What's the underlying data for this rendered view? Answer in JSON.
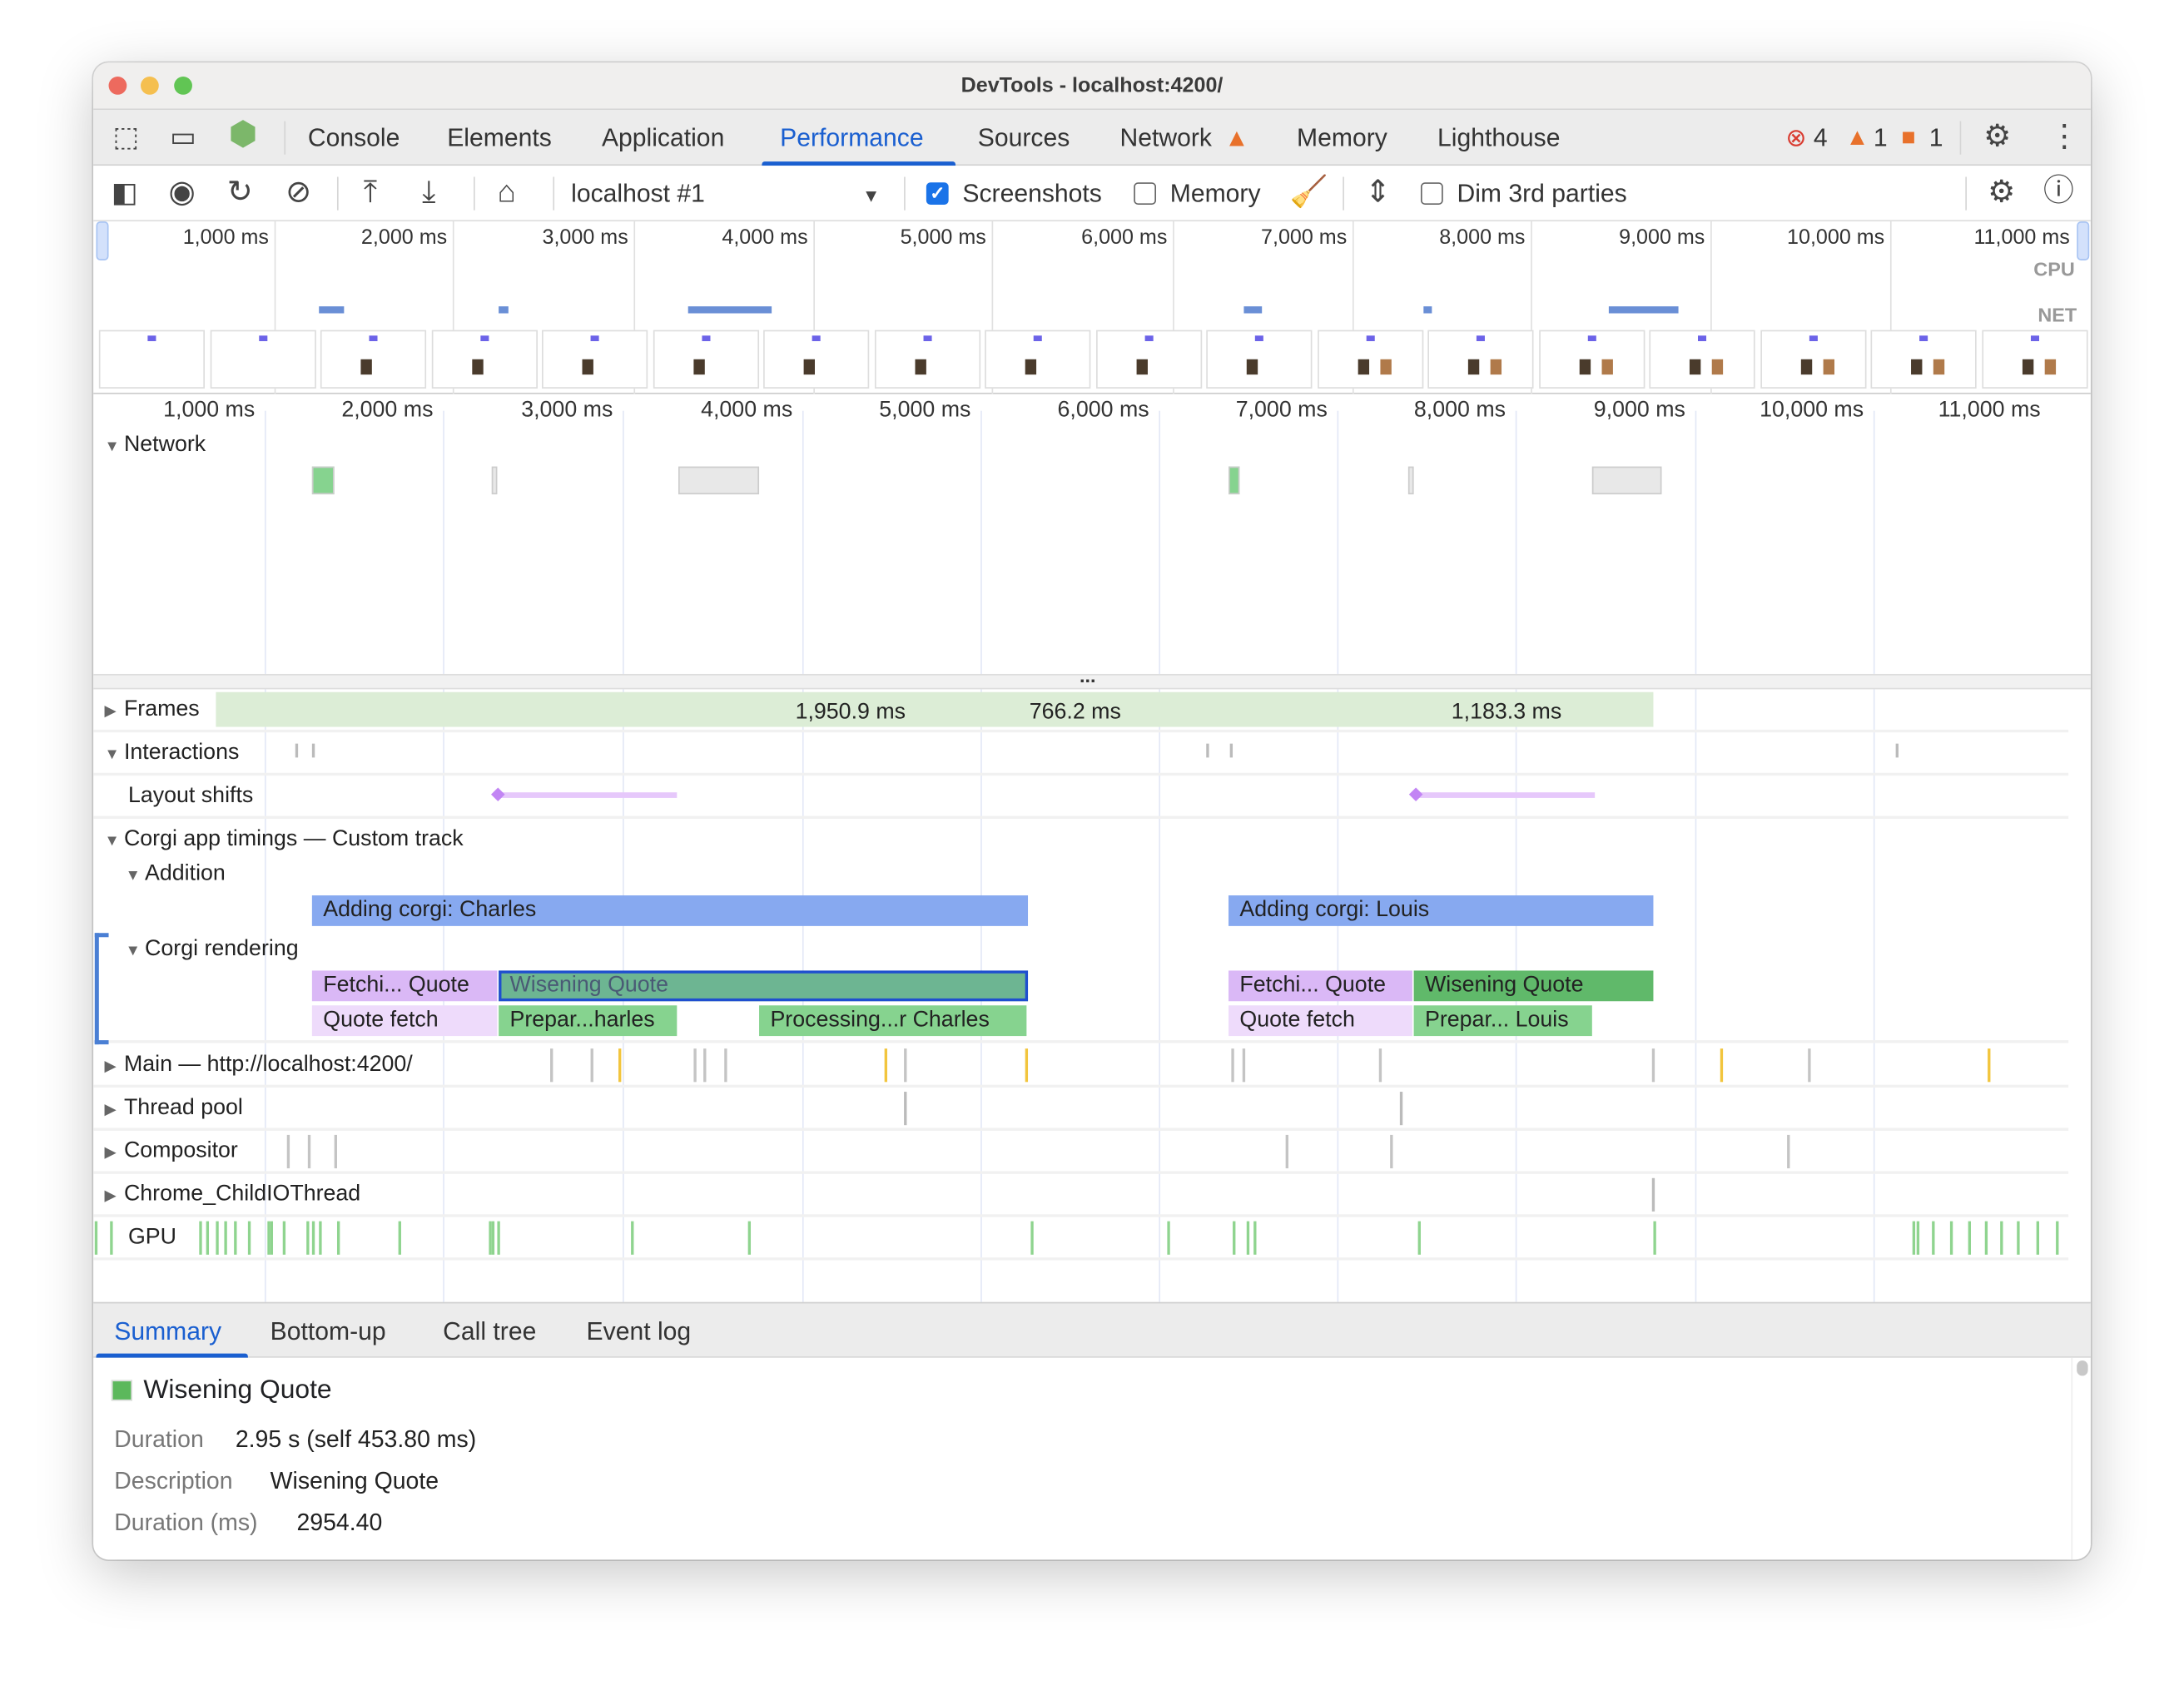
{
  "window": {
    "title": "DevTools - localhost:4200/"
  },
  "tabs": [
    {
      "label": "Console"
    },
    {
      "label": "Elements"
    },
    {
      "label": "Application"
    },
    {
      "label": "Performance",
      "active": true
    },
    {
      "label": "Sources"
    },
    {
      "label": "Network",
      "warning": true
    },
    {
      "label": "Memory"
    },
    {
      "label": "Lighthouse"
    }
  ],
  "status": {
    "errors": "4",
    "warnings": "1",
    "issues": "1"
  },
  "toolbar": {
    "recording": "localhost #1",
    "screenshots_label": "Screenshots",
    "screenshots_checked": true,
    "memory_label": "Memory",
    "memory_checked": false,
    "dim_label": "Dim 3rd parties",
    "dim_checked": false
  },
  "overview": {
    "ticks": [
      "1,000 ms",
      "2,000 ms",
      "3,000 ms",
      "4,000 ms",
      "5,000 ms",
      "6,000 ms",
      "7,000 ms",
      "8,000 ms",
      "9,000 ms",
      "10,000 ms",
      "11,000 ms"
    ],
    "cpu_label": "CPU",
    "net_label": "NET"
  },
  "ruler": {
    "ticks": [
      "1,000 ms",
      "2,000 ms",
      "3,000 ms",
      "4,000 ms",
      "5,000 ms",
      "6,000 ms",
      "7,000 ms",
      "8,000 ms",
      "9,000 ms",
      "10,000 ms",
      "11,000 ms"
    ]
  },
  "tracks": {
    "network": "Network",
    "more": "...",
    "frames": {
      "label": "Frames",
      "durations": [
        "1,950.9 ms",
        "766.2 ms",
        "1,183.3 ms"
      ]
    },
    "interactions": "Interactions",
    "layout_shifts": "Layout shifts",
    "custom": "Corgi app timings — Custom track",
    "addition": {
      "label": "Addition",
      "events": [
        "Adding corgi: Charles",
        "Adding corgi: Louis"
      ]
    },
    "rendering": {
      "label": "Corgi rendering",
      "events": [
        "Fetchi... Quote",
        "Wisening Quote",
        "Quote fetch",
        "Prepar...harles",
        "Processing...r Charles",
        "Fetchi... Quote",
        "Wisening Quote",
        "Quote fetch",
        "Prepar... Louis"
      ]
    },
    "main": "Main — http://localhost:4200/",
    "thread_pool": "Thread pool",
    "compositor": "Compositor",
    "childio": "Chrome_ChildIOThread",
    "gpu": "GPU"
  },
  "bottom_tabs": [
    {
      "label": "Summary",
      "active": true
    },
    {
      "label": "Bottom-up"
    },
    {
      "label": "Call tree"
    },
    {
      "label": "Event log"
    }
  ],
  "summary": {
    "title": "Wisening Quote",
    "color": "#5cb85c",
    "rows": [
      {
        "key": "Duration",
        "value": "2.95 s (self 453.80 ms)"
      },
      {
        "key": "Description",
        "value": "Wisening Quote"
      },
      {
        "key": "Duration (ms)",
        "value": "2954.40"
      }
    ]
  },
  "colors": {
    "accent": "#1a5fd0",
    "addition": "#87a9f0",
    "fetch": "#dab8f6",
    "fetch_light": "#eedbfb",
    "wisening_selected": "#6db592",
    "green": "#86d38f",
    "wisening": "#60b96a",
    "frames": "#dcedd6"
  }
}
